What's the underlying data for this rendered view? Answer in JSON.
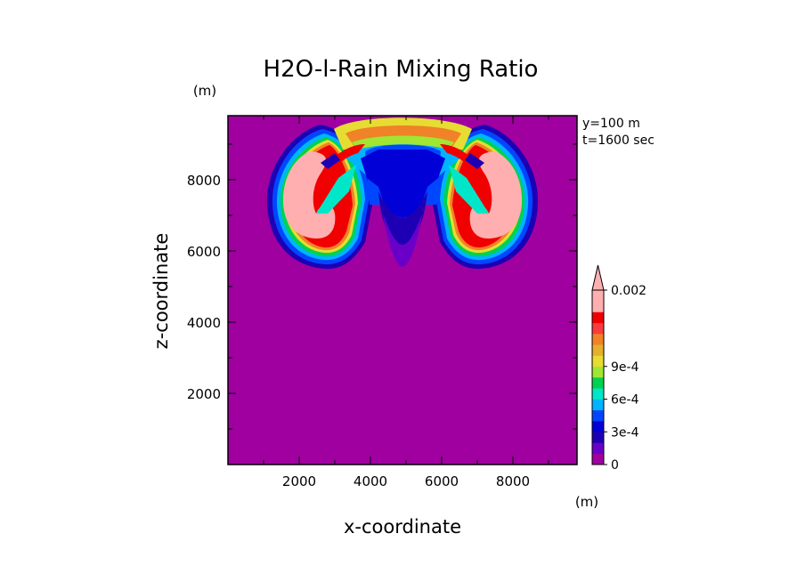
{
  "chart_data": {
    "type": "heatmap",
    "title": "H2O-l-Rain Mixing Ratio",
    "xlabel": "x-coordinate",
    "ylabel": "z-coordinate",
    "x_unit": "(m)",
    "y_unit": "(m)",
    "xlim": [
      0,
      9800
    ],
    "ylim": [
      0,
      9800
    ],
    "x_ticks": [
      "2000",
      "4000",
      "6000",
      "8000"
    ],
    "y_ticks": [
      "2000",
      "4000",
      "6000",
      "8000"
    ],
    "x_tick_values": [
      2000,
      4000,
      6000,
      8000
    ],
    "y_tick_values": [
      2000,
      4000,
      6000,
      8000
    ],
    "annotations": [
      "y=100 m",
      "t=1600 sec"
    ],
    "colorbar": {
      "colors": [
        "#a000a0",
        "#6a00c8",
        "#1e00b4",
        "#0000d7",
        "#0046ff",
        "#00b4ff",
        "#00e6c8",
        "#00d250",
        "#a0e632",
        "#e6dc32",
        "#e6af2d",
        "#f08228",
        "#fa3c3c",
        "#f00000",
        "#ffafaf",
        "#ffafaf"
      ],
      "tick_labels": [
        "0",
        "3e-4",
        "6e-4",
        "9e-4",
        "0.002"
      ],
      "tick_values": [
        0,
        0.0003,
        0.0006,
        0.0009,
        0.002
      ],
      "extend": "max"
    },
    "background_level_color": "#a000a0"
  }
}
